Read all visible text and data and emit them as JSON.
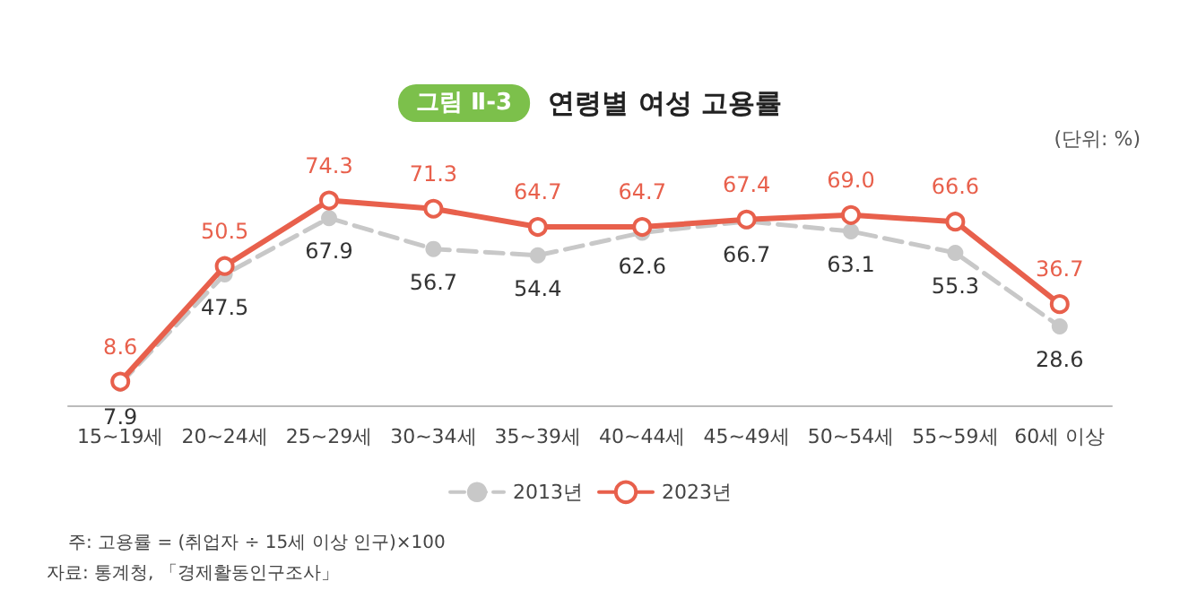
{
  "chart_data": {
    "type": "line",
    "title": "연령별 여성 고용률",
    "subtitle": "그림 Ⅱ-3",
    "annotations": [
      "(단위: %)",
      "주: 고용률 = (취업자 ÷ 15세 이상 인구)×100",
      "자료: 통계청, 「경제활동인구조사」"
    ],
    "categories": [
      "15~19세",
      "20~24세",
      "25~29세",
      "30~34세",
      "35~39세",
      "40~44세",
      "45~49세",
      "50~54세",
      "55~59세",
      "60세 이상"
    ],
    "series": [
      {
        "name": "2013년",
        "color": "#c8c8c8",
        "line_style": "dashed",
        "values": [
          7.9,
          47.5,
          67.9,
          56.7,
          54.4,
          62.6,
          66.7,
          63.1,
          55.3,
          28.6
        ]
      },
      {
        "name": "2023년",
        "color": "#e8604c",
        "line_style": "solid",
        "values": [
          8.6,
          50.5,
          74.3,
          71.3,
          64.7,
          64.7,
          67.4,
          69.0,
          66.6,
          36.7
        ],
        "value_labels": [
          "8.6",
          "50.5",
          "74.3",
          "71.3",
          "64.7",
          "64.7",
          "67.4",
          "69.0",
          "66.6",
          "36.7"
        ]
      }
    ],
    "data_labels": true,
    "marker": "circle",
    "legend": "bottom",
    "grid": false
  }
}
